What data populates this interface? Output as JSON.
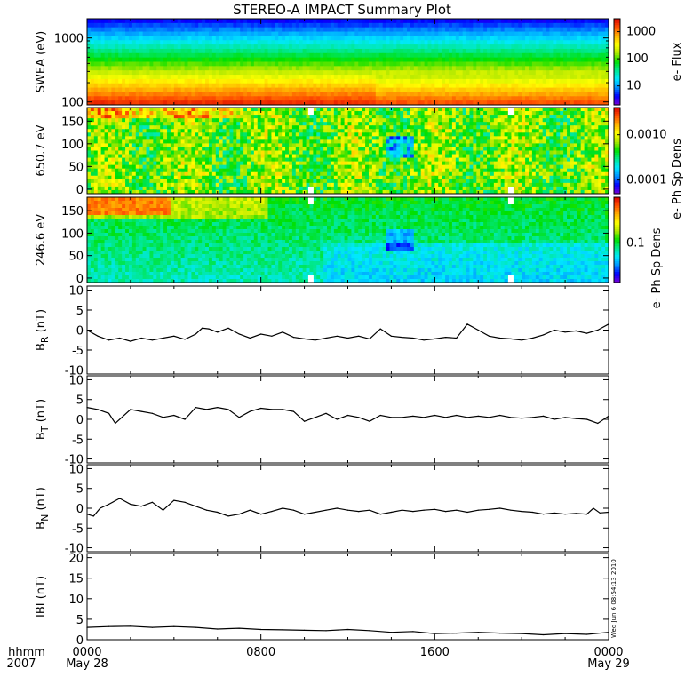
{
  "title": "STEREO-A IMPACT Summary Plot",
  "x_axis": {
    "left_labels": [
      "hhmm",
      "2007"
    ],
    "ticks": [
      {
        "hour": 0,
        "label": "0000",
        "sublabel": "May 28"
      },
      {
        "hour": 8,
        "label": "0800",
        "sublabel": ""
      },
      {
        "hour": 16,
        "label": "1600",
        "sublabel": ""
      },
      {
        "hour": 24,
        "label": "0000",
        "sublabel": "May 29"
      }
    ],
    "range_hours": [
      0,
      24
    ]
  },
  "stamp": "Wed Jun  6 08:54:13 2010",
  "colors": {
    "colormap": [
      "#7a00d8",
      "#0000ff",
      "#0090ff",
      "#00e8ff",
      "#00e890",
      "#00e000",
      "#b0e800",
      "#ffff00",
      "#ffb000",
      "#ff5000",
      "#d80000"
    ],
    "line": "#000000"
  },
  "chart_data": [
    {
      "type": "heatmap",
      "ylabel": "SWEA (eV)",
      "y_scale": "log",
      "ylim": [
        90,
        2000
      ],
      "yticks": [
        100,
        1000
      ],
      "ytick_labels": [
        "100",
        "1000"
      ],
      "colorbar": {
        "label": "e- Flux",
        "scale": "log",
        "range": [
          2,
          3000
        ],
        "ticks": [
          10,
          100,
          1000
        ],
        "tick_labels": [
          "10",
          "100",
          "1000"
        ]
      },
      "description_levels": {
        "energy_eV": [
          100,
          150,
          250,
          400,
          700,
          1100,
          1800
        ],
        "level": [
          0.92,
          0.85,
          0.7,
          0.55,
          0.42,
          0.3,
          0.15
        ]
      }
    },
    {
      "type": "heatmap",
      "ylabel": "650.7 eV",
      "y_scale": "linear",
      "ylim": [
        -10,
        180
      ],
      "yticks": [
        0,
        50,
        100,
        150
      ],
      "ytick_labels": [
        "0",
        "50",
        "100",
        "150"
      ],
      "colorbar": {
        "label": "e- Ph Sp Dens",
        "scale": "log",
        "range": [
          5e-05,
          0.004
        ],
        "ticks": [
          0.0001,
          0.001
        ],
        "tick_labels": [
          "0.0001",
          "0.0010"
        ]
      },
      "data_gaps_hours": [
        10.3,
        19.5
      ]
    },
    {
      "type": "heatmap",
      "ylabel": "246.6 eV",
      "y_scale": "linear",
      "ylim": [
        -10,
        180
      ],
      "yticks": [
        0,
        50,
        100,
        150
      ],
      "ytick_labels": [
        "0",
        "50",
        "100",
        "150"
      ],
      "colorbar": {
        "label": "e- Ph Sp Dens",
        "scale": "log",
        "range": [
          0.03,
          0.4
        ],
        "ticks": [
          0.1
        ],
        "tick_labels": [
          "0.1"
        ]
      },
      "data_gaps_hours": [
        10.3,
        19.5
      ]
    },
    {
      "type": "line",
      "ylabel_base": "B",
      "ylabel_sub": "R",
      "ylabel_unit": " (nT)",
      "ylim": [
        -11,
        11
      ],
      "yticks": [
        -10,
        -5,
        0,
        5,
        10
      ],
      "ytick_labels": [
        "-10",
        "-5",
        "0",
        "5",
        "10"
      ],
      "x": [
        0,
        0.5,
        1,
        1.5,
        2,
        2.5,
        3,
        3.5,
        4,
        4.5,
        5,
        5.3,
        5.6,
        6,
        6.5,
        7,
        7.5,
        8,
        8.5,
        9,
        9.5,
        10,
        10.5,
        11,
        11.5,
        12,
        12.5,
        13,
        13.5,
        14,
        14.5,
        15,
        15.5,
        16,
        16.5,
        17,
        17.5,
        18,
        18.5,
        19,
        19.5,
        20,
        20.5,
        21,
        21.5,
        22,
        22.5,
        23,
        23.5,
        24
      ],
      "values": [
        0,
        -1.5,
        -2.5,
        -2,
        -2.8,
        -2,
        -2.5,
        -2,
        -1.5,
        -2.3,
        -1,
        0.5,
        0.3,
        -0.5,
        0.5,
        -1,
        -2,
        -1,
        -1.5,
        -0.5,
        -1.8,
        -2.2,
        -2.5,
        -2,
        -1.5,
        -2,
        -1.5,
        -2.2,
        0.3,
        -1.5,
        -1.8,
        -2,
        -2.5,
        -2.2,
        -1.8,
        -2,
        1.5,
        0,
        -1.5,
        -2,
        -2.2,
        -2.5,
        -2,
        -1.2,
        0,
        -0.5,
        -0.2,
        -0.8,
        0,
        1.5
      ]
    },
    {
      "type": "line",
      "ylabel_base": "B",
      "ylabel_sub": "T",
      "ylabel_unit": " (nT)",
      "ylim": [
        -11,
        11
      ],
      "yticks": [
        -10,
        -5,
        0,
        5,
        10
      ],
      "ytick_labels": [
        "-10",
        "-5",
        "0",
        "5",
        "10"
      ],
      "x": [
        0,
        0.5,
        1,
        1.3,
        1.6,
        2,
        2.5,
        3,
        3.5,
        4,
        4.5,
        5,
        5.5,
        6,
        6.5,
        7,
        7.5,
        8,
        8.5,
        9,
        9.5,
        10,
        10.5,
        11,
        11.5,
        12,
        12.5,
        13,
        13.5,
        14,
        14.5,
        15,
        15.5,
        16,
        16.5,
        17,
        17.5,
        18,
        18.5,
        19,
        19.5,
        20,
        20.5,
        21,
        21.5,
        22,
        22.5,
        23,
        23.5,
        24
      ],
      "values": [
        3,
        2.5,
        1.5,
        -1,
        0.5,
        2.5,
        2,
        1.5,
        0.5,
        1,
        0,
        3,
        2.5,
        3,
        2.5,
        0.5,
        2,
        2.8,
        2.5,
        2.5,
        2,
        -0.5,
        0.5,
        1.5,
        0,
        1,
        0.5,
        -0.5,
        1,
        0.5,
        0.5,
        0.8,
        0.5,
        1,
        0.5,
        1,
        0.5,
        0.8,
        0.5,
        1,
        0.5,
        0.3,
        0.5,
        0.8,
        0,
        0.5,
        0.2,
        0,
        -1,
        0.8
      ]
    },
    {
      "type": "line",
      "ylabel_base": "B",
      "ylabel_sub": "N",
      "ylabel_unit": " (nT)",
      "ylim": [
        -11,
        11
      ],
      "yticks": [
        -10,
        -5,
        0,
        5,
        10
      ],
      "ytick_labels": [
        "-10",
        "-5",
        "0",
        "5",
        "10"
      ],
      "x": [
        0,
        0.3,
        0.6,
        1,
        1.5,
        2,
        2.5,
        3,
        3.5,
        4,
        4.5,
        5,
        5.5,
        6,
        6.5,
        7,
        7.5,
        8,
        8.5,
        9,
        9.5,
        10,
        10.5,
        11,
        11.5,
        12,
        12.5,
        13,
        13.5,
        14,
        14.5,
        15,
        15.5,
        16,
        16.5,
        17,
        17.5,
        18,
        18.5,
        19,
        19.5,
        20,
        20.5,
        21,
        21.5,
        22,
        22.5,
        23,
        23.3,
        23.6,
        24
      ],
      "values": [
        -1.5,
        -2,
        0,
        1,
        2.5,
        1,
        0.5,
        1.5,
        -0.5,
        2,
        1.5,
        0.5,
        -0.5,
        -1,
        -2,
        -1.5,
        -0.5,
        -1.5,
        -0.8,
        0,
        -0.5,
        -1.5,
        -1,
        -0.5,
        0,
        -0.5,
        -0.8,
        -0.5,
        -1.5,
        -1,
        -0.5,
        -0.8,
        -0.5,
        -0.3,
        -0.8,
        -0.5,
        -1,
        -0.5,
        -0.3,
        0,
        -0.5,
        -0.8,
        -1,
        -1.5,
        -1.2,
        -1.5,
        -1.3,
        -1.5,
        0,
        -1.2,
        -1
      ]
    },
    {
      "type": "line",
      "ylabel": "IBI (nT)",
      "ylim": [
        0,
        21
      ],
      "yticks": [
        0,
        5,
        10,
        15,
        20
      ],
      "ytick_labels": [
        "0",
        "5",
        "10",
        "15",
        "20"
      ],
      "x": [
        0,
        1,
        2,
        3,
        4,
        5,
        6,
        7,
        8,
        9,
        10,
        11,
        12,
        13,
        14,
        15,
        16,
        17,
        18,
        19,
        20,
        21,
        22,
        23,
        24
      ],
      "values": [
        3,
        3.2,
        3.3,
        3,
        3.2,
        3,
        2.6,
        2.8,
        2.5,
        2.4,
        2.3,
        2.2,
        2.5,
        2.2,
        1.8,
        2,
        1.5,
        1.6,
        1.8,
        1.6,
        1.5,
        1.2,
        1.5,
        1.3,
        1.8
      ]
    }
  ]
}
